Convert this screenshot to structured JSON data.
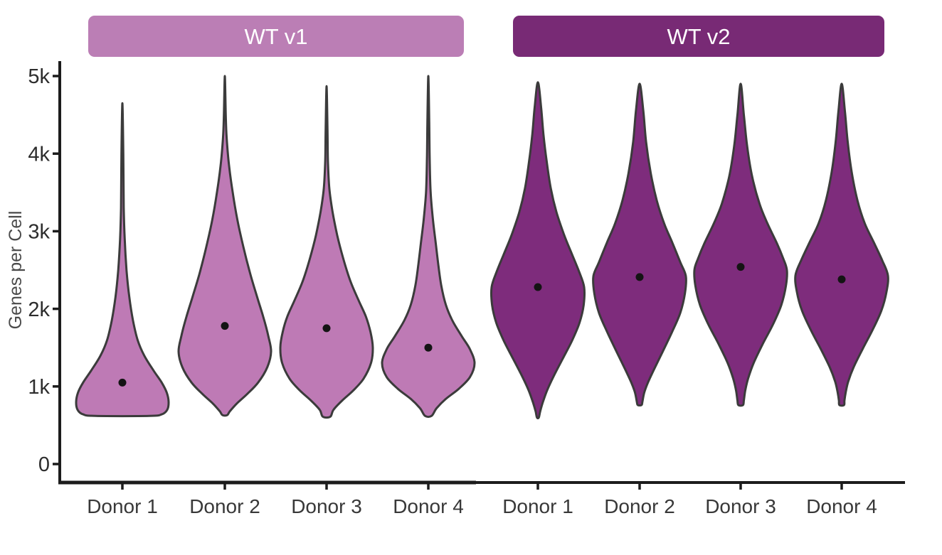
{
  "chart_data": {
    "type": "violin",
    "title": "",
    "ylabel": "Genes per Cell",
    "xlabel": "",
    "ylim": [
      0,
      5500
    ],
    "grid": false,
    "legend": null,
    "ytick_labels": [
      "0",
      "1k",
      "2k",
      "3k",
      "4k",
      "5k"
    ],
    "ytick_values": [
      0,
      1000,
      2000,
      3000,
      4000,
      5000
    ],
    "categories": [
      "Donor 1",
      "Donor 2",
      "Donor 3",
      "Donor 4"
    ],
    "colors": {
      "light_fill": "#be7ab5",
      "light_header": "#bb7eb5",
      "dark_fill": "#7e2c7c",
      "dark_header": "#782a75",
      "outline": "#3b3b3b",
      "median_dot": "#141414",
      "axis": "#1c1c1c",
      "tick_text": "#2d2d2d",
      "axis_label_text": "#4a4a4a",
      "header_text": "#ffffff"
    },
    "facets": [
      {
        "name": "WT v1",
        "fill": "#be7ab5",
        "header_fill": "#bb7eb5",
        "violins": [
          {
            "donor": "Donor 1",
            "median": 1050,
            "min": 620,
            "max": 4650,
            "flat_bottom": true,
            "profile": [
              [
                4650,
                0.02
              ],
              [
                4000,
                0.02
              ],
              [
                3300,
                0.03
              ],
              [
                2900,
                0.05
              ],
              [
                2500,
                0.09
              ],
              [
                2150,
                0.15
              ],
              [
                1850,
                0.23
              ],
              [
                1600,
                0.33
              ],
              [
                1400,
                0.47
              ],
              [
                1200,
                0.68
              ],
              [
                1050,
                0.85
              ],
              [
                920,
                0.96
              ],
              [
                800,
                1.0
              ],
              [
                700,
                0.97
              ],
              [
                640,
                0.85
              ],
              [
                620,
                0.58
              ]
            ]
          },
          {
            "donor": "Donor 2",
            "median": 1780,
            "min": 630,
            "max": 5000,
            "flat_bottom": false,
            "profile": [
              [
                5000,
                0.02
              ],
              [
                4500,
                0.02
              ],
              [
                4200,
                0.04
              ],
              [
                3850,
                0.09
              ],
              [
                3500,
                0.17
              ],
              [
                3150,
                0.27
              ],
              [
                2800,
                0.4
              ],
              [
                2450,
                0.55
              ],
              [
                2150,
                0.7
              ],
              [
                1900,
                0.83
              ],
              [
                1650,
                0.94
              ],
              [
                1450,
                1.0
              ],
              [
                1250,
                0.92
              ],
              [
                1050,
                0.72
              ],
              [
                900,
                0.48
              ],
              [
                780,
                0.26
              ],
              [
                680,
                0.11
              ],
              [
                630,
                0.05
              ]
            ]
          },
          {
            "donor": "Donor 3",
            "median": 1750,
            "min": 610,
            "max": 4870,
            "flat_bottom": false,
            "profile": [
              [
                4870,
                0.02
              ],
              [
                4300,
                0.02
              ],
              [
                3900,
                0.03
              ],
              [
                3550,
                0.06
              ],
              [
                3250,
                0.13
              ],
              [
                2950,
                0.23
              ],
              [
                2650,
                0.36
              ],
              [
                2350,
                0.52
              ],
              [
                2100,
                0.7
              ],
              [
                1900,
                0.85
              ],
              [
                1700,
                0.95
              ],
              [
                1500,
                1.0
              ],
              [
                1300,
                0.96
              ],
              [
                1100,
                0.8
              ],
              [
                950,
                0.58
              ],
              [
                820,
                0.34
              ],
              [
                700,
                0.15
              ],
              [
                610,
                0.08
              ]
            ]
          },
          {
            "donor": "Donor 4",
            "median": 1500,
            "min": 620,
            "max": 5000,
            "flat_bottom": false,
            "profile": [
              [
                5000,
                0.02
              ],
              [
                4400,
                0.02
              ],
              [
                3900,
                0.03
              ],
              [
                3500,
                0.05
              ],
              [
                3150,
                0.1
              ],
              [
                2850,
                0.16
              ],
              [
                2550,
                0.22
              ],
              [
                2300,
                0.28
              ],
              [
                2050,
                0.38
              ],
              [
                1850,
                0.52
              ],
              [
                1650,
                0.72
              ],
              [
                1480,
                0.9
              ],
              [
                1300,
                1.0
              ],
              [
                1120,
                0.9
              ],
              [
                970,
                0.66
              ],
              [
                840,
                0.38
              ],
              [
                720,
                0.18
              ],
              [
                620,
                0.07
              ]
            ]
          }
        ]
      },
      {
        "name": "WT v2",
        "fill": "#7e2c7c",
        "header_fill": "#782a75",
        "violins": [
          {
            "donor": "Donor 1",
            "median": 2280,
            "min": 600,
            "max": 4920,
            "flat_bottom": false,
            "profile": [
              [
                4920,
                0.03
              ],
              [
                4600,
                0.07
              ],
              [
                4250,
                0.12
              ],
              [
                3900,
                0.19
              ],
              [
                3550,
                0.28
              ],
              [
                3250,
                0.4
              ],
              [
                2950,
                0.57
              ],
              [
                2700,
                0.74
              ],
              [
                2480,
                0.89
              ],
              [
                2280,
                1.0
              ],
              [
                2050,
                0.99
              ],
              [
                1820,
                0.9
              ],
              [
                1580,
                0.73
              ],
              [
                1350,
                0.53
              ],
              [
                1130,
                0.34
              ],
              [
                950,
                0.2
              ],
              [
                800,
                0.11
              ],
              [
                680,
                0.05
              ],
              [
                600,
                0.02
              ]
            ]
          },
          {
            "donor": "Donor 2",
            "median": 2410,
            "min": 760,
            "max": 4900,
            "flat_bottom": false,
            "profile": [
              [
                4900,
                0.03
              ],
              [
                4550,
                0.08
              ],
              [
                4150,
                0.14
              ],
              [
                3750,
                0.24
              ],
              [
                3400,
                0.37
              ],
              [
                3100,
                0.53
              ],
              [
                2850,
                0.71
              ],
              [
                2600,
                0.88
              ],
              [
                2420,
                1.0
              ],
              [
                2200,
                0.98
              ],
              [
                1950,
                0.88
              ],
              [
                1700,
                0.7
              ],
              [
                1450,
                0.5
              ],
              [
                1230,
                0.32
              ],
              [
                1050,
                0.18
              ],
              [
                920,
                0.1
              ],
              [
                800,
                0.06
              ],
              [
                760,
                0.04
              ]
            ]
          },
          {
            "donor": "Donor 3",
            "median": 2540,
            "min": 760,
            "max": 4900,
            "flat_bottom": false,
            "profile": [
              [
                4900,
                0.03
              ],
              [
                4500,
                0.07
              ],
              [
                4100,
                0.14
              ],
              [
                3700,
                0.25
              ],
              [
                3350,
                0.41
              ],
              [
                3100,
                0.58
              ],
              [
                2850,
                0.78
              ],
              [
                2650,
                0.92
              ],
              [
                2500,
                1.0
              ],
              [
                2300,
                0.98
              ],
              [
                2050,
                0.88
              ],
              [
                1800,
                0.7
              ],
              [
                1550,
                0.48
              ],
              [
                1300,
                0.28
              ],
              [
                1100,
                0.16
              ],
              [
                950,
                0.1
              ],
              [
                820,
                0.07
              ],
              [
                760,
                0.05
              ]
            ]
          },
          {
            "donor": "Donor 4",
            "median": 2380,
            "min": 760,
            "max": 4900,
            "flat_bottom": false,
            "profile": [
              [
                4900,
                0.03
              ],
              [
                4550,
                0.07
              ],
              [
                4150,
                0.13
              ],
              [
                3750,
                0.22
              ],
              [
                3400,
                0.34
              ],
              [
                3100,
                0.5
              ],
              [
                2850,
                0.7
              ],
              [
                2620,
                0.88
              ],
              [
                2430,
                1.0
              ],
              [
                2220,
                0.97
              ],
              [
                1980,
                0.86
              ],
              [
                1730,
                0.67
              ],
              [
                1480,
                0.45
              ],
              [
                1250,
                0.26
              ],
              [
                1060,
                0.14
              ],
              [
                930,
                0.09
              ],
              [
                820,
                0.06
              ],
              [
                760,
                0.05
              ]
            ]
          }
        ]
      }
    ]
  }
}
